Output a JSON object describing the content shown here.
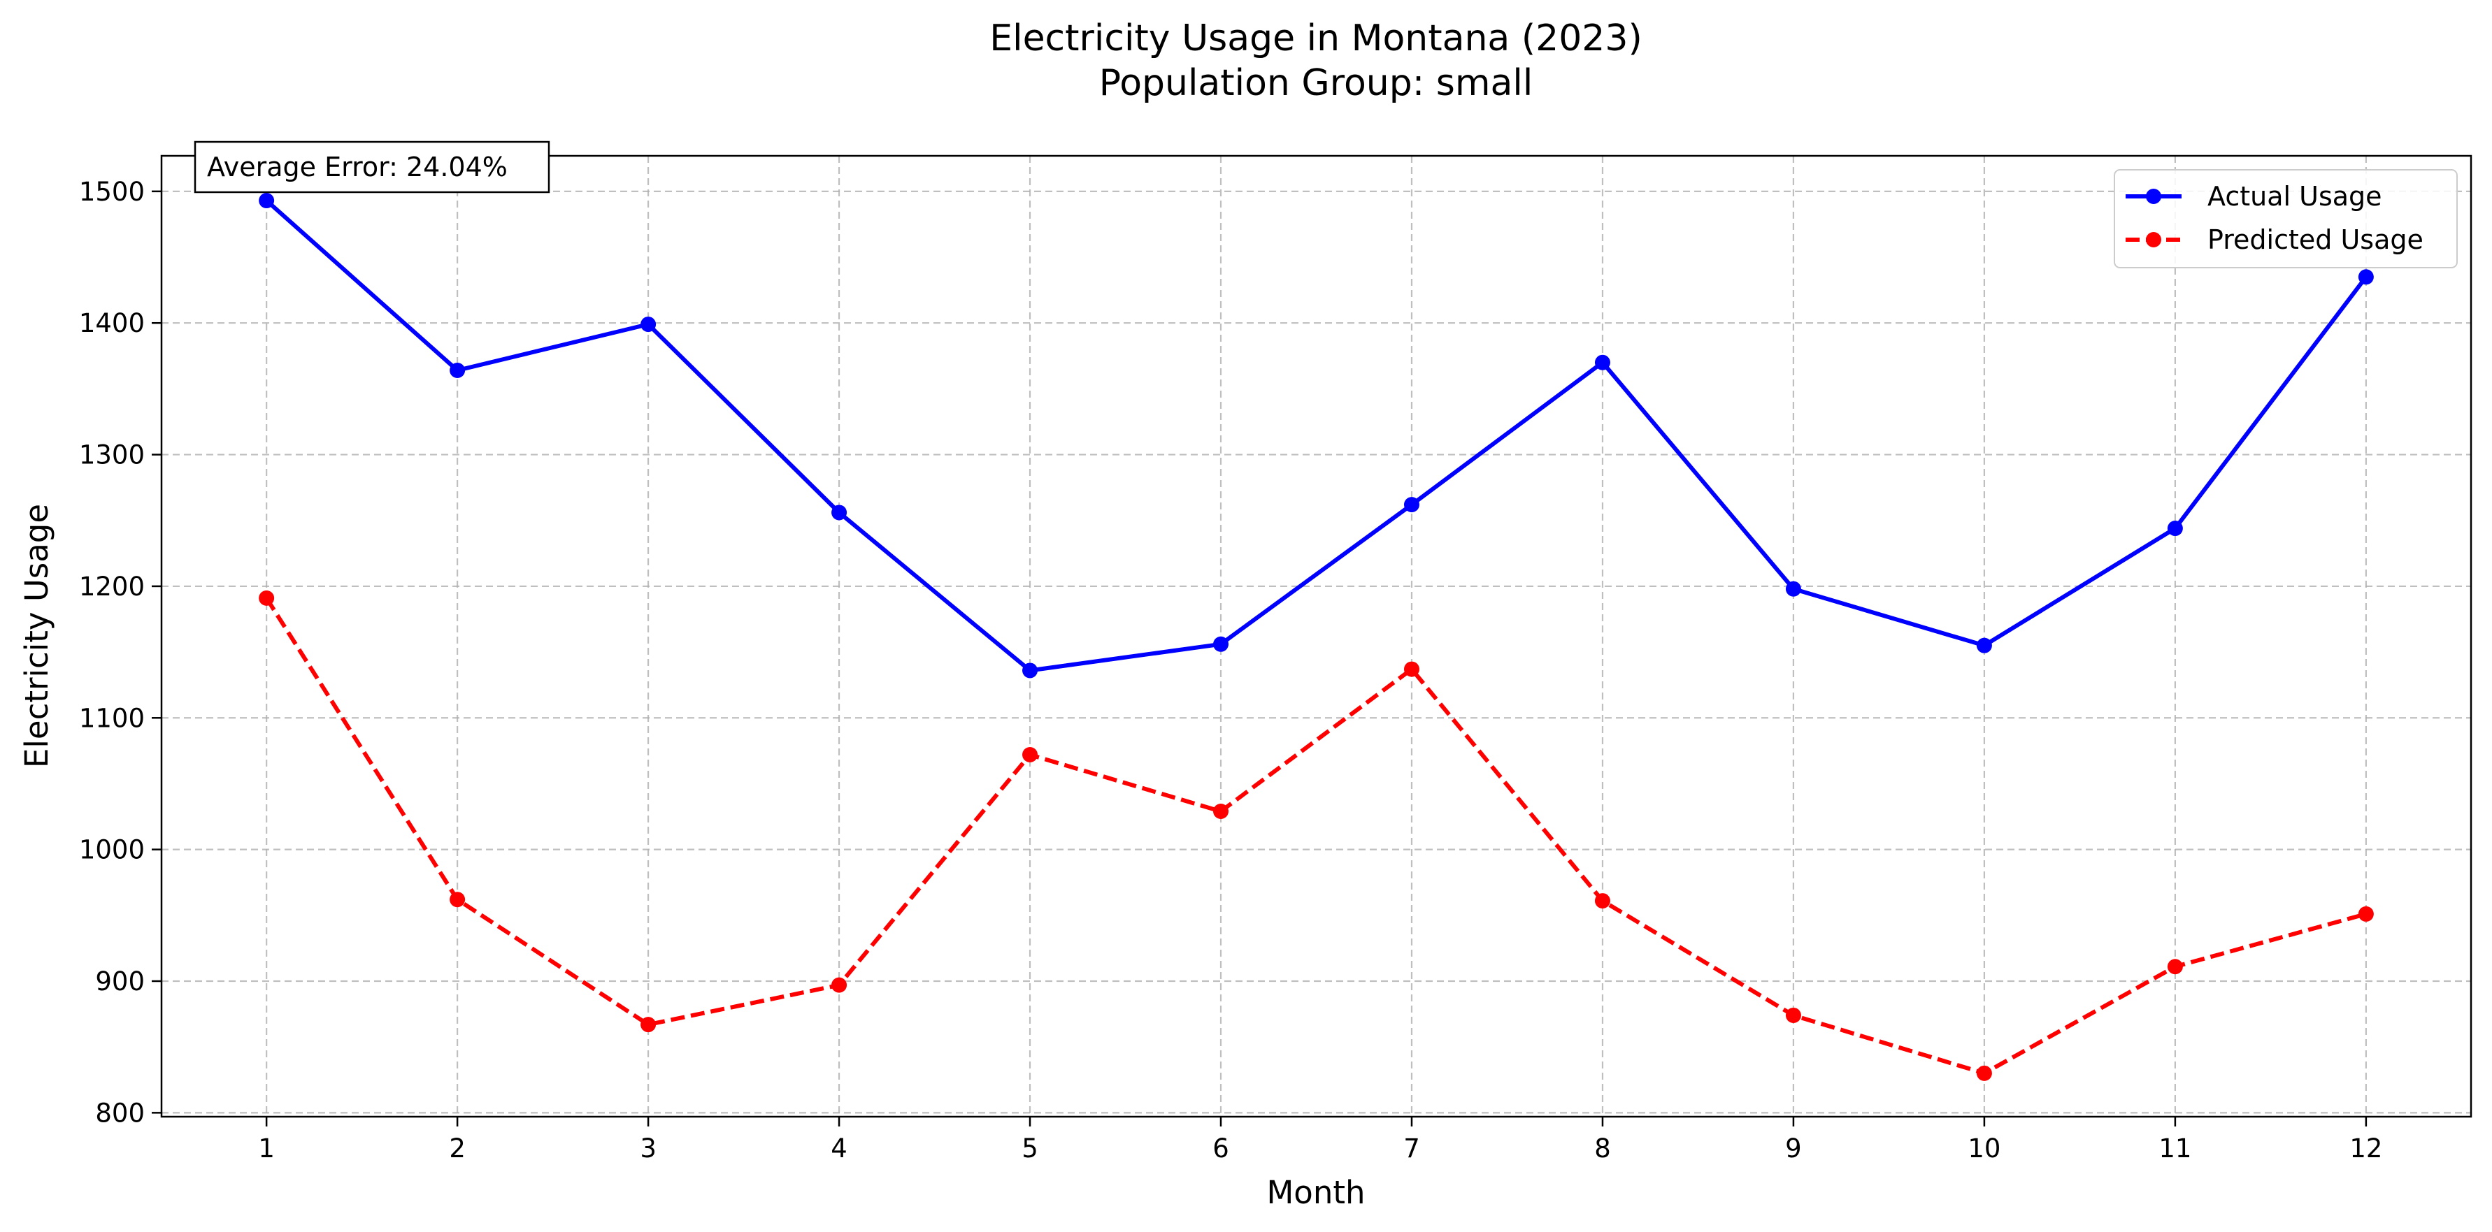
{
  "chart_data": {
    "type": "line",
    "title": "Electricity Usage in Montana (2023)",
    "subtitle": "Population Group: small",
    "xlabel": "Month",
    "ylabel": "Electricity Usage",
    "x": [
      1,
      2,
      3,
      4,
      5,
      6,
      7,
      8,
      9,
      10,
      11,
      12
    ],
    "xlim": [
      0.45,
      12.55
    ],
    "ylim": [
      797,
      1527
    ],
    "yticks": [
      800,
      900,
      1000,
      1100,
      1200,
      1300,
      1400,
      1500
    ],
    "grid": true,
    "legend_position": "top-right",
    "series": [
      {
        "name": "Actual Usage",
        "color": "#0000ff",
        "style": "solid",
        "marker": "circle",
        "values": [
          1493,
          1364,
          1399,
          1256,
          1136,
          1156,
          1262,
          1370,
          1198,
          1155,
          1244,
          1435
        ]
      },
      {
        "name": "Predicted Usage",
        "color": "#ff0000",
        "style": "dashed",
        "marker": "circle",
        "values": [
          1191,
          962,
          867,
          897,
          1072,
          1029,
          1137,
          961,
          874,
          830,
          911,
          951
        ]
      }
    ],
    "annotation": {
      "text": "Average Error: 24.04%",
      "position": "top-left"
    }
  }
}
